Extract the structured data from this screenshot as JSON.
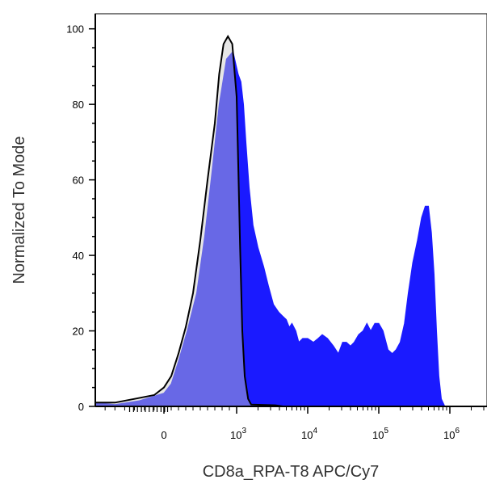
{
  "chart_data": {
    "type": "area",
    "title": "",
    "xlabel": "CD8a_RPA-T8 APC/Cy7",
    "ylabel": "Normalized To Mode",
    "x_scale": "biexponential",
    "xlim": [
      -700,
      3000000
    ],
    "ylim": [
      0,
      104
    ],
    "y_ticks": [
      {
        "value": 0,
        "label": "0"
      },
      {
        "value": 20,
        "label": "20"
      },
      {
        "value": 40,
        "label": "40"
      },
      {
        "value": 60,
        "label": "60"
      },
      {
        "value": 80,
        "label": "80"
      },
      {
        "value": 100,
        "label": "100"
      }
    ],
    "x_ticks": [
      {
        "value": 0,
        "base": "0",
        "exp": ""
      },
      {
        "value": 1000,
        "base": "10",
        "exp": "3"
      },
      {
        "value": 10000,
        "base": "10",
        "exp": "4"
      },
      {
        "value": 100000,
        "base": "10",
        "exp": "5"
      },
      {
        "value": 1000000,
        "base": "10",
        "exp": "6"
      }
    ],
    "grid": false,
    "legend": "none",
    "series": [
      {
        "color": "#1a1aff",
        "fill": "#1a1aff",
        "stroke": "#1a1aff",
        "points": [
          [
            -700,
            1
          ],
          [
            -500,
            0.5
          ],
          [
            -250,
            1.5
          ],
          [
            0,
            3.5
          ],
          [
            100,
            6
          ],
          [
            200,
            12
          ],
          [
            320,
            20
          ],
          [
            450,
            30
          ],
          [
            560,
            45
          ],
          [
            660,
            62
          ],
          [
            760,
            80
          ],
          [
            860,
            92
          ],
          [
            950,
            94
          ],
          [
            1050,
            88
          ],
          [
            1150,
            86
          ],
          [
            1250,
            80
          ],
          [
            1350,
            70
          ],
          [
            1500,
            58
          ],
          [
            1700,
            48
          ],
          [
            2000,
            42
          ],
          [
            2400,
            37
          ],
          [
            2800,
            32
          ],
          [
            3300,
            27
          ],
          [
            3900,
            25
          ],
          [
            4400,
            24
          ],
          [
            5000,
            23
          ],
          [
            5500,
            21
          ],
          [
            6000,
            22
          ],
          [
            6800,
            20
          ],
          [
            7500,
            17
          ],
          [
            8500,
            18
          ],
          [
            10000,
            18
          ],
          [
            12000,
            17
          ],
          [
            14000,
            18
          ],
          [
            16000,
            19
          ],
          [
            19000,
            18
          ],
          [
            23000,
            16
          ],
          [
            27000,
            14
          ],
          [
            31000,
            17
          ],
          [
            35000,
            17
          ],
          [
            40000,
            16
          ],
          [
            45000,
            17
          ],
          [
            52000,
            19
          ],
          [
            60000,
            20
          ],
          [
            68000,
            22
          ],
          [
            77000,
            20
          ],
          [
            88000,
            22
          ],
          [
            100000,
            22
          ],
          [
            115000,
            20
          ],
          [
            135000,
            15
          ],
          [
            155000,
            14
          ],
          [
            175000,
            15
          ],
          [
            200000,
            17
          ],
          [
            230000,
            22
          ],
          [
            260000,
            30
          ],
          [
            300000,
            38
          ],
          [
            350000,
            44
          ],
          [
            400000,
            50
          ],
          [
            450000,
            53
          ],
          [
            500000,
            53
          ],
          [
            550000,
            46
          ],
          [
            600000,
            35
          ],
          [
            650000,
            20
          ],
          [
            700000,
            8
          ],
          [
            760000,
            2
          ],
          [
            850000,
            0
          ]
        ]
      },
      {
        "color": "#000000",
        "fill": "#c8c8c8",
        "stroke": "#000000",
        "points": [
          [
            -700,
            1
          ],
          [
            -500,
            1
          ],
          [
            -300,
            2
          ],
          [
            -100,
            3
          ],
          [
            0,
            5
          ],
          [
            100,
            8
          ],
          [
            200,
            14
          ],
          [
            300,
            21
          ],
          [
            400,
            30
          ],
          [
            500,
            44
          ],
          [
            600,
            60
          ],
          [
            700,
            75
          ],
          [
            760,
            88
          ],
          [
            820,
            96
          ],
          [
            880,
            98
          ],
          [
            940,
            96
          ],
          [
            1000,
            82
          ],
          [
            1060,
            62
          ],
          [
            1120,
            42
          ],
          [
            1200,
            20
          ],
          [
            1300,
            8
          ],
          [
            1450,
            2
          ],
          [
            1600,
            0.5
          ],
          [
            3500,
            0.3
          ],
          [
            4500,
            0
          ]
        ]
      }
    ]
  }
}
